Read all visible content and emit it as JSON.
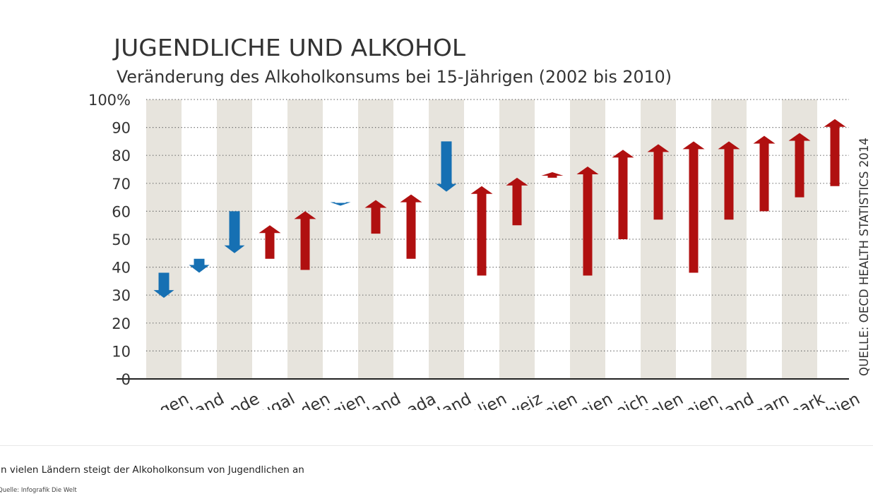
{
  "chart_data": {
    "type": "arrow-range",
    "title": "JUGENDLICHE UND ALKOHOL",
    "subtitle": "Veränderung des Alkoholkonsums bei 15-Jährigen (2002 bis 2010)",
    "source_vertical": "QUELLE: OECD HEALTH STATISTICS 2014",
    "ylim": [
      0,
      100
    ],
    "yticks": [
      {
        "value": 100,
        "label": "100%"
      },
      {
        "value": 90,
        "label": "90"
      },
      {
        "value": 80,
        "label": "80"
      },
      {
        "value": 70,
        "label": "70"
      },
      {
        "value": 60,
        "label": "60"
      },
      {
        "value": 50,
        "label": "50"
      },
      {
        "value": 40,
        "label": "40"
      },
      {
        "value": 30,
        "label": "30"
      },
      {
        "value": 20,
        "label": "20"
      },
      {
        "value": 10,
        "label": "10"
      },
      {
        "value": 0,
        "label": "0"
      }
    ],
    "categories": [
      "egen",
      "land",
      "ande",
      "tugal",
      "eden",
      "lgien",
      "tland",
      "nada",
      "land",
      "talien",
      "weiz",
      "nien",
      "nnien",
      "reich",
      "Polen",
      "nnien",
      "land",
      "ngarn",
      "mark",
      "chien"
    ],
    "series": [
      {
        "name": "2002",
        "values": [
          38,
          43,
          60,
          43,
          39,
          63,
          52,
          43,
          85,
          37,
          55,
          72,
          37,
          50,
          57,
          38,
          57,
          60,
          65,
          69
        ]
      },
      {
        "name": "2010",
        "values": [
          29,
          38,
          45,
          55,
          60,
          62,
          64,
          66,
          67,
          69,
          72,
          74,
          76,
          82,
          84,
          85,
          85,
          87,
          88,
          93
        ]
      }
    ],
    "colors": {
      "increase": "#b01010",
      "decrease": "#1670b3",
      "band": "#e7e4dd",
      "grid": "#666666"
    }
  },
  "caption": "In vielen Ländern steigt der Alkoholkonsum von Jugendlichen an",
  "credit": "Quelle: Infografik Die Welt"
}
